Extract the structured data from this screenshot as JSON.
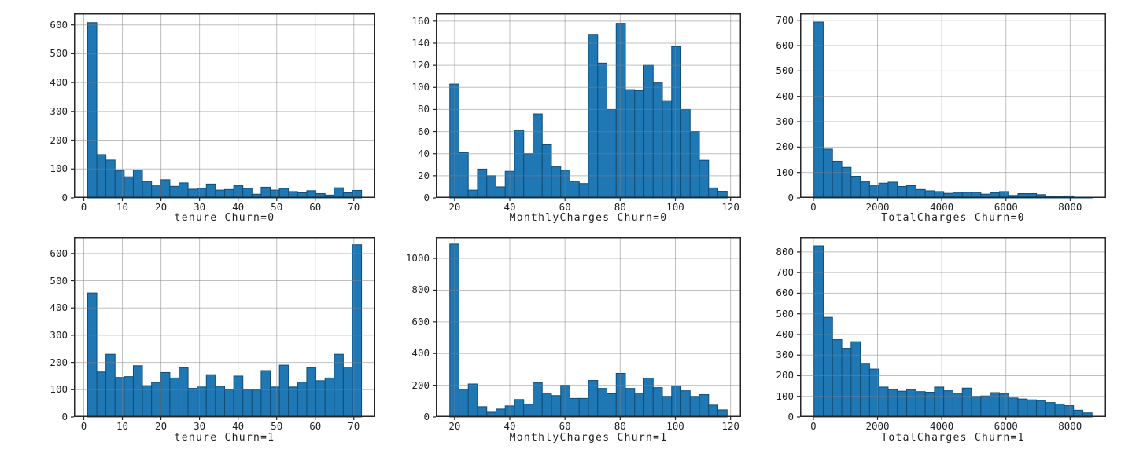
{
  "figure": {
    "background": "#ffffff",
    "rows": 2,
    "cols": 3
  },
  "colors": {
    "bar_fill": "#1f77b4",
    "bar_edge": "#0e4d78",
    "grid": "rgba(130,130,130,0.5)",
    "spine": "#262626",
    "tick_text": "#1f1f1f"
  },
  "chart_data": [
    {
      "type": "bar",
      "subtype": "histogram",
      "xlabel": "tenure Churn=0",
      "bin_start": 1,
      "bin_end": 72,
      "counts": [
        608,
        150,
        131,
        95,
        73,
        96,
        57,
        45,
        63,
        40,
        52,
        30,
        33,
        48,
        27,
        29,
        42,
        33,
        13,
        37,
        27,
        33,
        22,
        18,
        25,
        15,
        10,
        35,
        18,
        26
      ],
      "xlim": [
        -2.55,
        75.55
      ],
      "ylim": [
        0,
        640
      ],
      "xticks": [
        0,
        10,
        20,
        30,
        40,
        50,
        60,
        70
      ],
      "yticks": [
        0,
        100,
        200,
        300,
        400,
        500,
        600
      ],
      "grid": true,
      "legend": null
    },
    {
      "type": "bar",
      "subtype": "histogram",
      "xlabel": "MonthlyCharges Churn=0",
      "bin_start": 18.25,
      "bin_end": 118.75,
      "counts": [
        103,
        41,
        7,
        26,
        20,
        10,
        24,
        61,
        40,
        76,
        48,
        28,
        25,
        15,
        13,
        148,
        122,
        80,
        158,
        98,
        97,
        120,
        104,
        88,
        137,
        80,
        60,
        34,
        9,
        6
      ],
      "xlim": [
        13.2,
        123.8
      ],
      "ylim": [
        0,
        167
      ],
      "xticks": [
        20,
        40,
        60,
        80,
        100,
        120
      ],
      "yticks": [
        0,
        20,
        40,
        60,
        80,
        100,
        120,
        140,
        160
      ],
      "grid": true,
      "legend": null
    },
    {
      "type": "bar",
      "subtype": "histogram",
      "xlabel": "TotalCharges Churn=0",
      "bin_start": 18.8,
      "bin_end": 8684.8,
      "counts": [
        693,
        192,
        144,
        120,
        85,
        65,
        50,
        58,
        62,
        45,
        48,
        33,
        28,
        25,
        18,
        22,
        22,
        22,
        15,
        20,
        25,
        10,
        17,
        17,
        13,
        7,
        7,
        8,
        3,
        3
      ],
      "xlim": [
        -414,
        9118
      ],
      "ylim": [
        0,
        727
      ],
      "xticks": [
        0,
        2000,
        4000,
        6000,
        8000
      ],
      "yticks": [
        0,
        100,
        200,
        300,
        400,
        500,
        600,
        700
      ],
      "grid": true,
      "legend": null
    },
    {
      "type": "bar",
      "subtype": "histogram",
      "xlabel": "tenure Churn=1",
      "bin_start": 1,
      "bin_end": 72,
      "counts": [
        455,
        165,
        230,
        145,
        148,
        188,
        115,
        127,
        163,
        143,
        180,
        105,
        110,
        155,
        113,
        100,
        150,
        100,
        100,
        170,
        110,
        190,
        110,
        128,
        180,
        133,
        143,
        230,
        183,
        632
      ],
      "xlim": [
        -2.55,
        75.55
      ],
      "ylim": [
        0,
        660
      ],
      "xticks": [
        0,
        10,
        20,
        30,
        40,
        50,
        60,
        70
      ],
      "yticks": [
        0,
        100,
        200,
        300,
        400,
        500,
        600
      ],
      "grid": true,
      "legend": null
    },
    {
      "type": "bar",
      "subtype": "histogram",
      "xlabel": "MonthlyCharges Churn=1",
      "bin_start": 18.25,
      "bin_end": 118.75,
      "counts": [
        1090,
        175,
        208,
        65,
        30,
        50,
        70,
        110,
        80,
        215,
        150,
        135,
        200,
        117,
        117,
        230,
        180,
        146,
        275,
        180,
        150,
        245,
        185,
        130,
        196,
        165,
        130,
        141,
        75,
        45
      ],
      "xlim": [
        13.2,
        123.8
      ],
      "ylim": [
        0,
        1134
      ],
      "xticks": [
        20,
        40,
        60,
        80,
        100,
        120
      ],
      "yticks": [
        0,
        200,
        400,
        600,
        800,
        1000
      ],
      "grid": true,
      "legend": null
    },
    {
      "type": "bar",
      "subtype": "histogram",
      "xlabel": "TotalCharges Churn=1",
      "bin_start": 18.8,
      "bin_end": 8684.8,
      "counts": [
        830,
        483,
        375,
        333,
        365,
        260,
        232,
        145,
        133,
        125,
        133,
        123,
        120,
        145,
        127,
        115,
        140,
        100,
        102,
        118,
        112,
        92,
        87,
        83,
        80,
        70,
        63,
        55,
        33,
        20
      ],
      "xlim": [
        -415,
        9120
      ],
      "ylim": [
        0,
        872
      ],
      "xticks": [
        0,
        2000,
        4000,
        6000,
        8000
      ],
      "yticks": [
        0,
        100,
        200,
        300,
        400,
        500,
        600,
        700,
        800
      ],
      "grid": true,
      "legend": null
    }
  ]
}
